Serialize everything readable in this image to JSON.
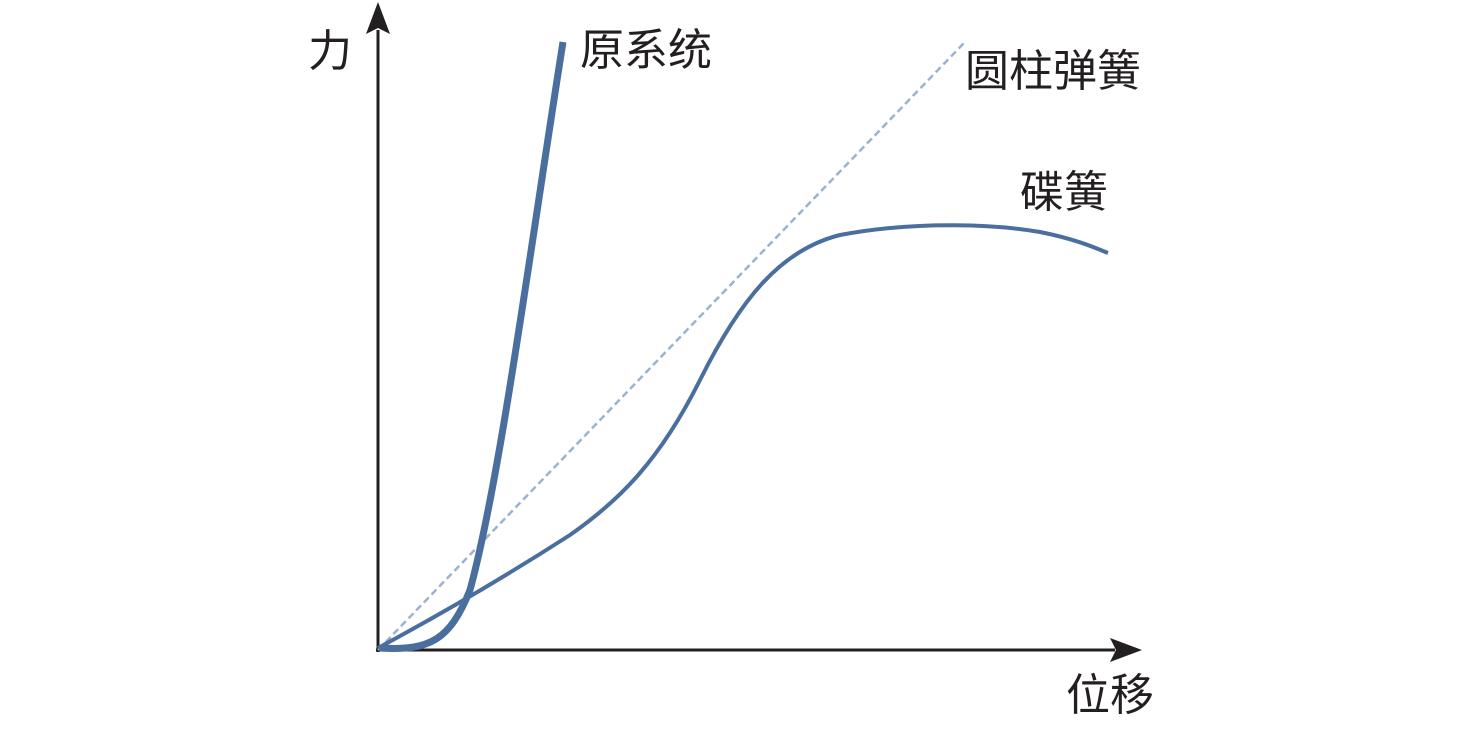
{
  "axes": {
    "y_label": "力",
    "x_label": "位移"
  },
  "curves": [
    {
      "label": "原系统"
    },
    {
      "label": "圆柱弹簧"
    },
    {
      "label": "碟簧"
    }
  ]
}
